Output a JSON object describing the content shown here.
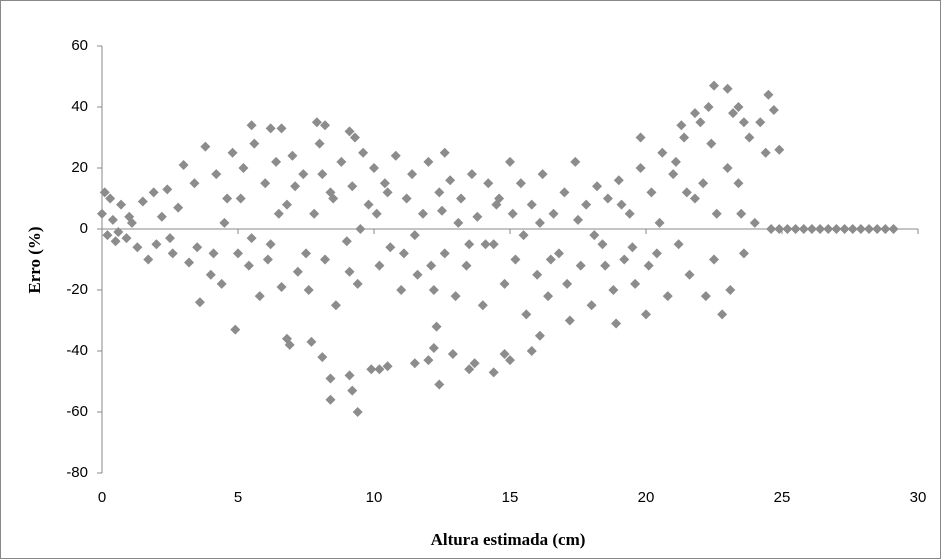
{
  "chart_data": {
    "type": "scatter",
    "xlabel": "Altura estimada (cm)",
    "ylabel": "Erro (%)",
    "xlim": [
      0,
      30
    ],
    "xticks": [
      0,
      5,
      10,
      15,
      20,
      25,
      30
    ],
    "ylim": [
      -80,
      60
    ],
    "yticks": [
      -80,
      -60,
      -40,
      -20,
      0,
      20,
      40,
      60
    ],
    "grid": false,
    "color": "#8c8c8c",
    "series": [
      {
        "name": null,
        "color": "#8c8c8c",
        "x": [
          0,
          0.1,
          0.2,
          0.3,
          0.4,
          0.5,
          0.7,
          0.9,
          1.1,
          1.3,
          1.5,
          1.7,
          1.9,
          2.0,
          2.2,
          2.4,
          2.6,
          2.8,
          3.0,
          3.2,
          3.4,
          3.6,
          3.8,
          4.0,
          4.2,
          4.4,
          4.6,
          4.8,
          5.0,
          5.2,
          5.4,
          5.6,
          5.8,
          6.0,
          6.2,
          6.4,
          6.6,
          6.8,
          7.0,
          7.2,
          7.4,
          7.6,
          7.8,
          8.0,
          8.2,
          8.4,
          8.6,
          8.8,
          9.0,
          9.2,
          9.4,
          9.6,
          9.8,
          10.0,
          10.2,
          10.4,
          10.6,
          10.8,
          11.0,
          11.2,
          11.4,
          11.6,
          11.8,
          12.0,
          12.2,
          12.4,
          12.6,
          12.8,
          13.0,
          13.2,
          13.4,
          13.6,
          13.8,
          14.0,
          14.2,
          14.4,
          14.6,
          14.8,
          15.0,
          15.2,
          15.4,
          15.6,
          15.8,
          16.0,
          16.2,
          16.4,
          16.6,
          16.8,
          17.0,
          17.2,
          17.4,
          17.6,
          17.8,
          18.0,
          18.2,
          18.4,
          18.6,
          18.8,
          19.0,
          19.2,
          19.4,
          19.6,
          19.8,
          20.0,
          20.2,
          20.4,
          20.6,
          20.8,
          21.0,
          21.2,
          21.4,
          21.6,
          21.8,
          22.0,
          22.2,
          22.4,
          22.6,
          22.8,
          23.0,
          23.2,
          23.4,
          23.6,
          23.8,
          24.0,
          24.2,
          24.4,
          0.6,
          1.0,
          2.5,
          3.5,
          4.5,
          5.5,
          6.5,
          7.5,
          8.5,
          9.5,
          10.5,
          11.5,
          12.5,
          13.5,
          14.5,
          15.5,
          16.5,
          17.5,
          18.5,
          19.5,
          20.5,
          21.5,
          22.5,
          23.5,
          4.1,
          5.1,
          6.1,
          7.1,
          8.1,
          9.1,
          10.1,
          11.1,
          12.1,
          13.1,
          14.1,
          15.1,
          16.1,
          17.1,
          18.1,
          19.1,
          20.1,
          21.1,
          22.1,
          23.1,
          4.9,
          6.8,
          6.9,
          7.7,
          8.1,
          8.4,
          8.4,
          9.1,
          9.2,
          9.4,
          9.9,
          10.2,
          10.5,
          11.5,
          12.0,
          12.2,
          12.3,
          12.4,
          12.9,
          13.5,
          13.7,
          14.4,
          14.8,
          15.0,
          15.8,
          16.1,
          18.9,
          5.5,
          6.2,
          6.6,
          7.9,
          8.2,
          9.1,
          9.3,
          12.6,
          19.8,
          21.3,
          22.5,
          23.0,
          23.4,
          24.5,
          24.7,
          22.3,
          24.9,
          21.8,
          23.6,
          24.6,
          24.9,
          25.2,
          25.5,
          25.8,
          26.1,
          26.4,
          26.7,
          27.0,
          27.3,
          27.6,
          27.9,
          28.2,
          28.5,
          28.8,
          29.1
        ],
        "values": [
          5,
          12,
          -2,
          10,
          3,
          -4,
          8,
          -3,
          2,
          -6,
          9,
          -10,
          12,
          -5,
          4,
          13,
          -8,
          7,
          21,
          -11,
          15,
          -24,
          27,
          -15,
          18,
          -18,
          10,
          25,
          -8,
          20,
          -12,
          28,
          -22,
          15,
          -5,
          22,
          -19,
          8,
          24,
          -14,
          18,
          -20,
          5,
          28,
          -10,
          12,
          -25,
          22,
          -4,
          14,
          -18,
          25,
          8,
          20,
          -12,
          15,
          -6,
          24,
          -20,
          10,
          18,
          -15,
          5,
          22,
          -20,
          12,
          -8,
          16,
          -22,
          10,
          -12,
          18,
          4,
          -25,
          15,
          -5,
          10,
          -18,
          22,
          -10,
          15,
          -28,
          8,
          -15,
          18,
          -22,
          5,
          -8,
          12,
          -30,
          22,
          -12,
          8,
          -25,
          14,
          -5,
          10,
          -20,
          16,
          -10,
          5,
          -18,
          20,
          -28,
          12,
          -8,
          25,
          -22,
          18,
          -5,
          30,
          -15,
          10,
          35,
          -22,
          28,
          5,
          -28,
          20,
          38,
          15,
          -8,
          30,
          2,
          35,
          25,
          -1,
          4,
          -3,
          -6,
          2,
          -3,
          5,
          -8,
          10,
          0,
          12,
          -2,
          6,
          -5,
          8,
          -2,
          -10,
          3,
          -12,
          -6,
          2,
          12,
          -10,
          5,
          -8,
          10,
          -10,
          14,
          18,
          -14,
          5,
          -8,
          -12,
          2,
          -5,
          5,
          2,
          -18,
          -2,
          8,
          -12,
          22,
          15,
          -20,
          -33,
          -36,
          -38,
          -37,
          -42,
          -49,
          -56,
          -48,
          -53,
          -60,
          -46,
          -46,
          -45,
          -44,
          -43,
          -39,
          -32,
          -51,
          -41,
          -46,
          -44,
          -47,
          -41,
          -43,
          -40,
          -35,
          -31,
          34,
          33,
          33,
          35,
          34,
          32,
          30,
          25,
          30,
          34,
          47,
          46,
          40,
          44,
          39,
          40,
          26,
          38,
          35,
          0,
          0,
          0,
          0,
          0,
          0,
          0,
          0,
          0,
          0,
          0,
          0,
          0,
          0,
          0,
          0
        ]
      }
    ]
  }
}
